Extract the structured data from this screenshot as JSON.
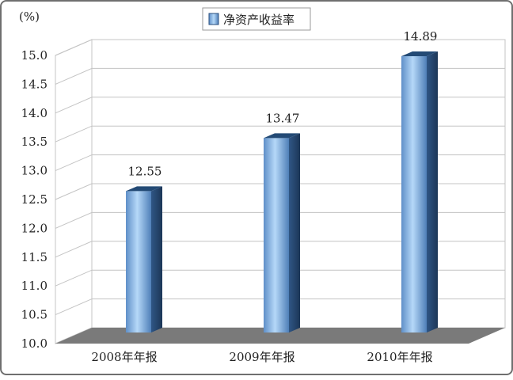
{
  "chart_data": {
    "type": "bar",
    "title": "",
    "ylabel": "(%)",
    "xlabel": "",
    "categories": [
      "2008年年报",
      "2009年年报",
      "2010年年报"
    ],
    "series": [
      {
        "name": "净资产收益率",
        "values": [
          12.55,
          13.47,
          14.89
        ]
      }
    ],
    "ylim": [
      10.0,
      15.0
    ],
    "yticks": [
      "10.0",
      "10.5",
      "11.0",
      "11.5",
      "12.0",
      "12.5",
      "13.0",
      "13.5",
      "14.0",
      "14.5",
      "15.0"
    ],
    "data_labels": [
      "12.55",
      "13.47",
      "14.89"
    ],
    "grid": true,
    "legend_position": "top",
    "style": "3d",
    "colors": {
      "bar_light": "#a9cff4",
      "bar_mid": "#6a9fd8",
      "bar_dark": "#2a4f7e",
      "bar_top": "#234a75",
      "bar_side": "#1f3f66",
      "floor": "#7a7a7a",
      "grid": "#c4c4c4"
    }
  }
}
